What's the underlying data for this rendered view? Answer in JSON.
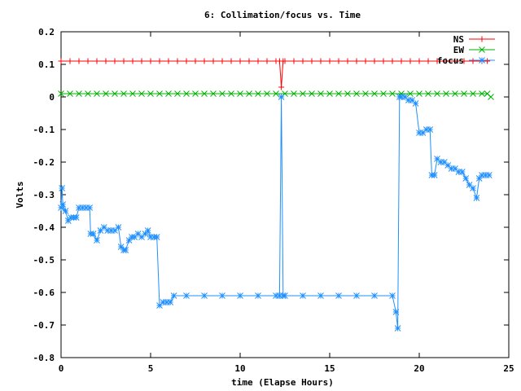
{
  "chart_data": {
    "type": "line",
    "title": "6: Collimation/focus vs. Time",
    "xlabel": "time (Elapse Hours)",
    "ylabel": "Volts",
    "xlim": [
      0,
      25
    ],
    "ylim": [
      -0.8,
      0.2
    ],
    "xticks": [
      0,
      5,
      10,
      15,
      20,
      25
    ],
    "yticks": [
      -0.8,
      -0.7,
      -0.6,
      -0.5,
      -0.4,
      -0.3,
      -0.2,
      -0.1,
      0,
      0.1,
      0.2
    ],
    "ytick_labels": [
      "-0.8",
      "-0.7",
      "-0.6",
      "-0.5",
      "-0.4",
      "-0.3",
      "-0.2",
      "-0.1",
      "0",
      "0.1",
      "0.2"
    ],
    "xtick_labels": [
      "0",
      "5",
      "10",
      "15",
      "20",
      "25"
    ],
    "grid": false,
    "legend_position": "top-right",
    "series": [
      {
        "name": "NS",
        "color": "#ff0000",
        "marker": "plus",
        "x": [
          0,
          0.5,
          1,
          1.5,
          2,
          2.5,
          3,
          3.5,
          4,
          4.5,
          5,
          5.5,
          6,
          6.5,
          7,
          7.5,
          8,
          8.5,
          9,
          9.5,
          10,
          10.5,
          11,
          11.5,
          12,
          12.2,
          12.3,
          12.4,
          12.5,
          13,
          13.5,
          14,
          14.5,
          15,
          15.5,
          16,
          16.5,
          17,
          17.5,
          18,
          18.5,
          19,
          19.5,
          20,
          20.5,
          21,
          21.5,
          22,
          22.5,
          23,
          23.5,
          23.8
        ],
        "y": [
          0.11,
          0.11,
          0.11,
          0.11,
          0.11,
          0.11,
          0.11,
          0.11,
          0.11,
          0.11,
          0.11,
          0.11,
          0.11,
          0.11,
          0.11,
          0.11,
          0.11,
          0.11,
          0.11,
          0.11,
          0.11,
          0.11,
          0.11,
          0.11,
          0.11,
          0.11,
          0.03,
          0.11,
          0.11,
          0.11,
          0.11,
          0.11,
          0.11,
          0.11,
          0.11,
          0.11,
          0.11,
          0.11,
          0.11,
          0.11,
          0.11,
          0.11,
          0.11,
          0.11,
          0.11,
          0.11,
          0.11,
          0.11,
          0.11,
          0.11,
          0.11,
          0.11
        ]
      },
      {
        "name": "EW",
        "color": "#00b000",
        "marker": "cross",
        "x": [
          0,
          0.5,
          1,
          1.5,
          2,
          2.5,
          3,
          3.5,
          4,
          4.5,
          5,
          5.5,
          6,
          6.5,
          7,
          7.5,
          8,
          8.5,
          9,
          9.5,
          10,
          10.5,
          11,
          11.5,
          12,
          12.5,
          13,
          13.5,
          14,
          14.5,
          15,
          15.5,
          16,
          16.5,
          17,
          17.5,
          18,
          18.5,
          19,
          19.5,
          20,
          20.5,
          21,
          21.5,
          22,
          22.5,
          23,
          23.5,
          23.8,
          24
        ],
        "y": [
          0.01,
          0.01,
          0.01,
          0.01,
          0.01,
          0.01,
          0.01,
          0.01,
          0.01,
          0.01,
          0.01,
          0.01,
          0.01,
          0.01,
          0.01,
          0.01,
          0.01,
          0.01,
          0.01,
          0.01,
          0.01,
          0.01,
          0.01,
          0.01,
          0.01,
          0.01,
          0.01,
          0.01,
          0.01,
          0.01,
          0.01,
          0.01,
          0.01,
          0.01,
          0.01,
          0.01,
          0.01,
          0.01,
          0.01,
          0.01,
          0.01,
          0.01,
          0.01,
          0.01,
          0.01,
          0.01,
          0.01,
          0.01,
          0.01,
          0.0
        ]
      },
      {
        "name": "focus",
        "color": "#1f8fff",
        "marker": "star",
        "x": [
          0.0,
          0.05,
          0.1,
          0.25,
          0.4,
          0.55,
          0.7,
          0.85,
          1.0,
          1.2,
          1.4,
          1.6,
          1.65,
          1.8,
          2.0,
          2.2,
          2.4,
          2.6,
          2.8,
          3.0,
          3.2,
          3.35,
          3.5,
          3.6,
          3.8,
          3.95,
          4.1,
          4.3,
          4.5,
          4.7,
          4.85,
          5.0,
          5.2,
          5.35,
          5.5,
          5.7,
          5.9,
          6.1,
          6.3,
          7.0,
          8.0,
          9.0,
          10.0,
          11.0,
          12.0,
          12.2,
          12.3,
          12.4,
          12.5,
          13.5,
          14.5,
          15.5,
          16.5,
          17.5,
          18.5,
          18.7,
          18.8,
          18.9,
          19.0,
          19.2,
          19.4,
          19.6,
          19.8,
          20.0,
          20.2,
          20.4,
          20.6,
          20.7,
          20.85,
          21.0,
          21.2,
          21.4,
          21.6,
          21.8,
          22.0,
          22.2,
          22.4,
          22.6,
          22.8,
          23.0,
          23.2,
          23.35,
          23.5,
          23.7,
          23.9
        ],
        "y": [
          -0.34,
          -0.28,
          -0.33,
          -0.35,
          -0.38,
          -0.37,
          -0.37,
          -0.37,
          -0.34,
          -0.34,
          -0.34,
          -0.34,
          -0.42,
          -0.42,
          -0.44,
          -0.41,
          -0.4,
          -0.41,
          -0.41,
          -0.41,
          -0.4,
          -0.46,
          -0.47,
          -0.47,
          -0.44,
          -0.43,
          -0.43,
          -0.42,
          -0.43,
          -0.42,
          -0.41,
          -0.43,
          -0.43,
          -0.43,
          -0.64,
          -0.63,
          -0.63,
          -0.63,
          -0.61,
          -0.61,
          -0.61,
          -0.61,
          -0.61,
          -0.61,
          -0.61,
          -0.61,
          0.0,
          -0.61,
          -0.61,
          -0.61,
          -0.61,
          -0.61,
          -0.61,
          -0.61,
          -0.61,
          -0.66,
          -0.71,
          0.0,
          0.0,
          0.0,
          -0.01,
          -0.01,
          -0.02,
          -0.11,
          -0.11,
          -0.1,
          -0.1,
          -0.24,
          -0.24,
          -0.19,
          -0.2,
          -0.2,
          -0.21,
          -0.22,
          -0.22,
          -0.23,
          -0.23,
          -0.25,
          -0.27,
          -0.28,
          -0.31,
          -0.25,
          -0.24,
          -0.24,
          -0.24
        ]
      }
    ]
  }
}
